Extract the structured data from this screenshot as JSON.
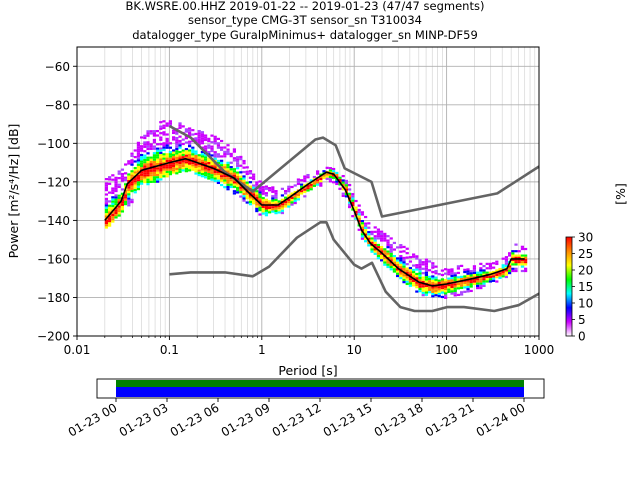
{
  "chart_data": {
    "type": "heatmap",
    "title_lines": [
      "BK.WSRE.00.HHZ   2019-01-22 -- 2019-01-23  (47/47 segments)",
      "sensor_type CMG-3T sensor_sn T310034",
      "datalogger_type GuralpMinimus+ datalogger_sn MINP-DF59"
    ],
    "xlabel": "Period [s]",
    "ylabel": "Power [m²/s⁴/Hz] [dB]",
    "x_scale": "log",
    "xlim": [
      0.01,
      1000
    ],
    "ylim": [
      -200,
      -50
    ],
    "x_tick_values": [
      0.01,
      0.1,
      1,
      10,
      100,
      1000
    ],
    "x_tick_labels": [
      "0.01",
      "0.1",
      "1",
      "10",
      "100",
      "1000"
    ],
    "y_tick_values": [
      -60,
      -80,
      -100,
      -120,
      -140,
      -160,
      -180,
      -200
    ],
    "y_tick_labels": [
      "−60",
      "−80",
      "−100",
      "−120",
      "−140",
      "−160",
      "−180",
      "−200"
    ],
    "grid": true,
    "colorbar": {
      "label": "[%]",
      "range": [
        0,
        30
      ],
      "tick_values": [
        0,
        5,
        10,
        15,
        20,
        25,
        30
      ],
      "tick_labels": [
        "0",
        "5",
        "10",
        "15",
        "20",
        "25",
        "30"
      ],
      "colors": [
        "#ffffff",
        "#cc00ff",
        "#0000ff",
        "#00ffff",
        "#00ff00",
        "#ffff00",
        "#ff8800",
        "#ff0000"
      ]
    },
    "series": [
      {
        "role": "noise-model-high",
        "color": "#646464",
        "points": [
          [
            0.1,
            -91
          ],
          [
            0.17,
            -97
          ],
          [
            0.4,
            -115
          ],
          [
            0.8,
            -125
          ],
          [
            3.8,
            -98
          ],
          [
            4.6,
            -97
          ],
          [
            6.3,
            -101
          ],
          [
            7.9,
            -113
          ],
          [
            15.4,
            -120
          ],
          [
            20,
            -138
          ],
          [
            354,
            -126
          ],
          [
            1000,
            -112
          ]
        ]
      },
      {
        "role": "noise-model-low",
        "color": "#646464",
        "points": [
          [
            0.1,
            -168
          ],
          [
            0.17,
            -167
          ],
          [
            0.4,
            -167
          ],
          [
            0.8,
            -169
          ],
          [
            1.2,
            -164
          ],
          [
            2.4,
            -149
          ],
          [
            4.3,
            -141
          ],
          [
            5,
            -141
          ],
          [
            6,
            -150
          ],
          [
            10,
            -163
          ],
          [
            12,
            -165
          ],
          [
            15.6,
            -162
          ],
          [
            21.9,
            -177
          ],
          [
            31.6,
            -185
          ],
          [
            45,
            -187
          ],
          [
            70,
            -187
          ],
          [
            101,
            -185
          ],
          [
            154,
            -185
          ],
          [
            328,
            -187
          ],
          [
            600,
            -184
          ],
          [
            1000,
            -178
          ]
        ]
      },
      {
        "role": "mean-psd",
        "color": "#000000",
        "points": [
          [
            0.02,
            -140
          ],
          [
            0.03,
            -130
          ],
          [
            0.035,
            -121
          ],
          [
            0.05,
            -114
          ],
          [
            0.1,
            -110
          ],
          [
            0.15,
            -108
          ],
          [
            0.2,
            -110
          ],
          [
            0.3,
            -113
          ],
          [
            0.5,
            -118
          ],
          [
            0.7,
            -125
          ],
          [
            1,
            -132
          ],
          [
            1.5,
            -132
          ],
          [
            2,
            -128
          ],
          [
            3,
            -122
          ],
          [
            4,
            -118
          ],
          [
            5,
            -115
          ],
          [
            6,
            -116
          ],
          [
            8,
            -124
          ],
          [
            10,
            -135
          ],
          [
            12,
            -145
          ],
          [
            15,
            -152
          ],
          [
            20,
            -157
          ],
          [
            30,
            -165
          ],
          [
            50,
            -172
          ],
          [
            70,
            -174
          ],
          [
            100,
            -173
          ],
          [
            200,
            -170
          ],
          [
            300,
            -168
          ],
          [
            400,
            -166
          ],
          [
            450,
            -165
          ],
          [
            500,
            -160
          ],
          [
            700,
            -160
          ]
        ]
      }
    ],
    "psd_band": [
      [
        0.02,
        -144,
        -118
      ],
      [
        0.03,
        -135,
        -113
      ],
      [
        0.05,
        -124,
        -95
      ],
      [
        0.08,
        -118,
        -88
      ],
      [
        0.1,
        -116,
        -88
      ],
      [
        0.15,
        -114,
        -90
      ],
      [
        0.2,
        -116,
        -93
      ],
      [
        0.3,
        -120,
        -96
      ],
      [
        0.5,
        -126,
        -103
      ],
      [
        0.7,
        -132,
        -112
      ],
      [
        1,
        -138,
        -120
      ],
      [
        1.5,
        -137,
        -124
      ],
      [
        2,
        -132,
        -120
      ],
      [
        3,
        -126,
        -116
      ],
      [
        5,
        -120,
        -112
      ],
      [
        6,
        -120,
        -113
      ],
      [
        8,
        -130,
        -118
      ],
      [
        10,
        -141,
        -128
      ],
      [
        12,
        -150,
        -136
      ],
      [
        15,
        -156,
        -142
      ],
      [
        20,
        -162,
        -146
      ],
      [
        30,
        -170,
        -152
      ],
      [
        50,
        -178,
        -158
      ],
      [
        70,
        -180,
        -162
      ],
      [
        100,
        -180,
        -164
      ],
      [
        200,
        -176,
        -162
      ],
      [
        300,
        -172,
        -162
      ],
      [
        450,
        -170,
        -158
      ],
      [
        500,
        -166,
        -152
      ],
      [
        700,
        -166,
        -152
      ]
    ],
    "timeline": {
      "tick_labels": [
        "01-23 00",
        "01-23 03",
        "01-23 06",
        "01-23 09",
        "01-23 12",
        "01-23 15",
        "01-23 18",
        "01-23 21",
        "01-24 00"
      ],
      "bar_colors": [
        "#008000",
        "#0000ff"
      ]
    }
  }
}
